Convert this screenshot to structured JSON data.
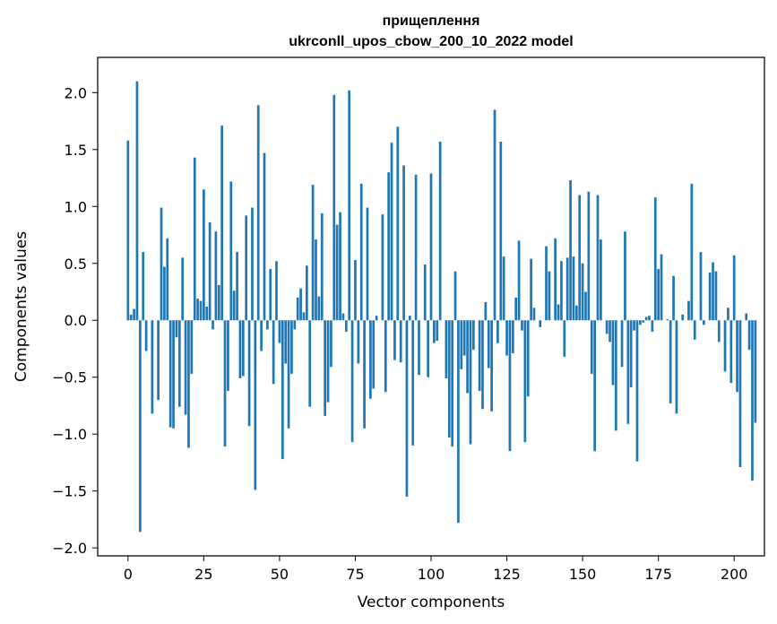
{
  "chart_data": {
    "type": "bar",
    "title": "прищеплення\nukrconll_upos_cbow_200_10_2022 model",
    "title_lines": [
      "прищеплення",
      "ukrconll_upos_cbow_200_10_2022 model"
    ],
    "xlabel": "Vector components",
    "ylabel": "Components values",
    "xlim": [
      -10,
      210
    ],
    "ylim": [
      -2.07,
      2.31
    ],
    "xticks": [
      0,
      25,
      50,
      75,
      100,
      125,
      150,
      175,
      200
    ],
    "xtick_labels": [
      "0",
      "25",
      "50",
      "75",
      "100",
      "125",
      "150",
      "175",
      "200"
    ],
    "yticks": [
      -2.0,
      -1.5,
      -1.0,
      -0.5,
      0.0,
      0.5,
      1.0,
      1.5,
      2.0
    ],
    "ytick_labels": [
      "−2.0",
      "−1.5",
      "−1.0",
      "−0.5",
      "0.0",
      "0.5",
      "1.0",
      "1.5",
      "2.0"
    ],
    "grid": false,
    "bar_color": "#1f77b4",
    "values": [
      1.58,
      0.05,
      0.1,
      2.1,
      -1.86,
      0.6,
      -0.27,
      0.0,
      -0.82,
      0.0,
      -0.7,
      0.99,
      0.47,
      0.72,
      -0.94,
      -0.95,
      -0.15,
      -0.76,
      0.55,
      -0.83,
      -1.12,
      -0.47,
      1.43,
      0.19,
      0.17,
      1.15,
      0.12,
      0.86,
      -0.08,
      0.78,
      0.31,
      1.71,
      -1.11,
      -0.62,
      1.22,
      0.26,
      0.6,
      -0.51,
      -0.49,
      0.92,
      -0.93,
      0.99,
      -1.49,
      1.89,
      -0.27,
      1.47,
      -0.08,
      0.45,
      -0.56,
      0.52,
      -0.2,
      -1.22,
      -0.38,
      -0.95,
      -0.47,
      -0.08,
      0.2,
      0.28,
      0.07,
      0.48,
      -0.76,
      1.19,
      0.71,
      0.21,
      0.94,
      -0.84,
      -0.72,
      -0.41,
      1.98,
      0.84,
      0.95,
      0.06,
      -0.1,
      2.02,
      -1.07,
      0.53,
      -0.38,
      1.2,
      -0.95,
      0.99,
      -0.69,
      -0.6,
      0.04,
      0.0,
      0.93,
      -0.63,
      1.3,
      1.56,
      -0.35,
      1.7,
      -0.37,
      1.36,
      -1.55,
      0.04,
      -1.1,
      1.28,
      -0.48,
      0.0,
      0.49,
      -0.5,
      1.29,
      -0.2,
      -0.18,
      1.57,
      0.0,
      -0.51,
      -1.03,
      -1.11,
      0.43,
      -1.78,
      -0.43,
      -0.31,
      -0.64,
      -1.09,
      -0.26,
      0.0,
      -0.62,
      -0.78,
      0.16,
      -0.42,
      -0.8,
      1.85,
      -0.2,
      1.57,
      0.56,
      -0.31,
      -1.15,
      -0.29,
      0.2,
      0.7,
      -0.09,
      -1.07,
      -0.67,
      0.54,
      0.11,
      0.0,
      -0.06,
      0.0,
      0.65,
      0.43,
      0.0,
      0.72,
      0.14,
      0.52,
      -0.32,
      0.55,
      1.23,
      0.56,
      0.13,
      1.1,
      0.5,
      0.25,
      1.13,
      -0.47,
      -1.15,
      1.1,
      0.71,
      0.0,
      -0.12,
      -0.19,
      -0.57,
      -0.97,
      0.0,
      -0.41,
      0.78,
      -0.91,
      -0.59,
      -0.09,
      -1.24,
      -0.04,
      -0.02,
      0.03,
      0.04,
      -0.1,
      1.08,
      0.45,
      0.58,
      0.0,
      0.01,
      -0.73,
      0.39,
      -0.82,
      0.0,
      0.05,
      0.0,
      0.17,
      1.2,
      -0.17,
      0.0,
      0.6,
      -0.04,
      0.0,
      0.42,
      0.51,
      0.43,
      -0.19,
      0.0,
      -0.45,
      0.11,
      -0.55,
      0.57,
      -0.63,
      -1.29,
      0.0,
      0.06,
      -0.26,
      -1.41,
      -0.9
    ]
  }
}
